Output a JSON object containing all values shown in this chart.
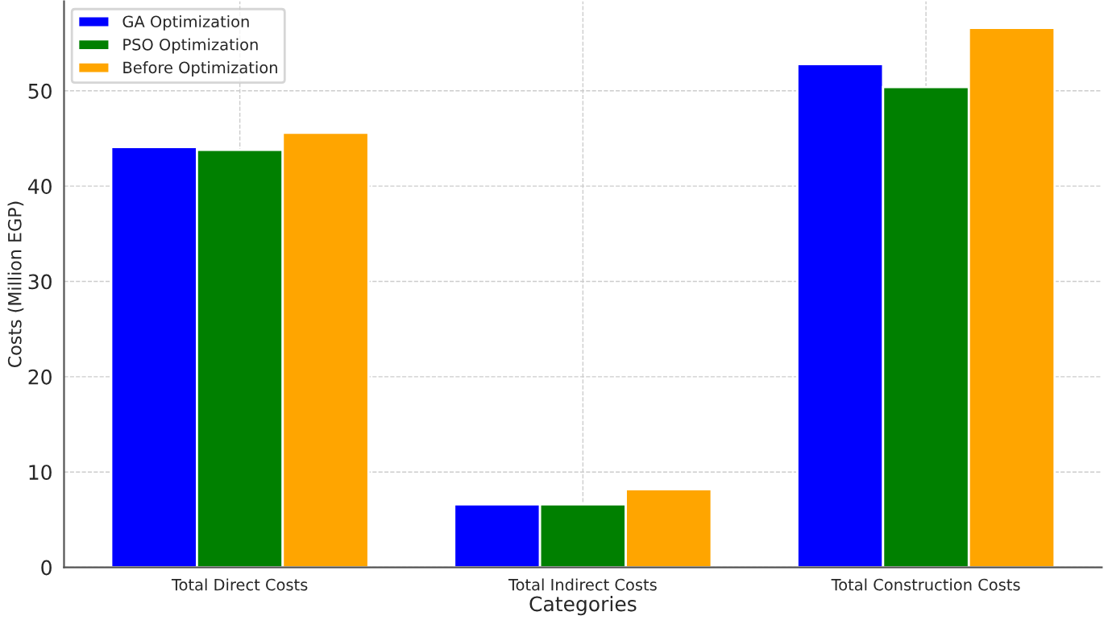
{
  "chart_data": {
    "type": "bar",
    "xlabel": "Categories",
    "ylabel": "Costs (Million EGP)",
    "categories": [
      "Total Direct Costs",
      "Total Indirect Costs",
      "Total Construction Costs"
    ],
    "series": [
      {
        "name": "GA Optimization",
        "color": "#0000ff",
        "values": [
          44.1,
          6.6,
          52.8
        ]
      },
      {
        "name": "PSO Optimization",
        "color": "#008000",
        "values": [
          43.8,
          6.6,
          50.4
        ]
      },
      {
        "name": "Before Optimization",
        "color": "#ffa500",
        "values": [
          45.6,
          8.2,
          56.6
        ]
      }
    ],
    "ylim": [
      0,
      59.4
    ],
    "yticks": [
      0,
      10,
      20,
      30,
      40,
      50
    ],
    "grid": true,
    "legend": "top left"
  }
}
